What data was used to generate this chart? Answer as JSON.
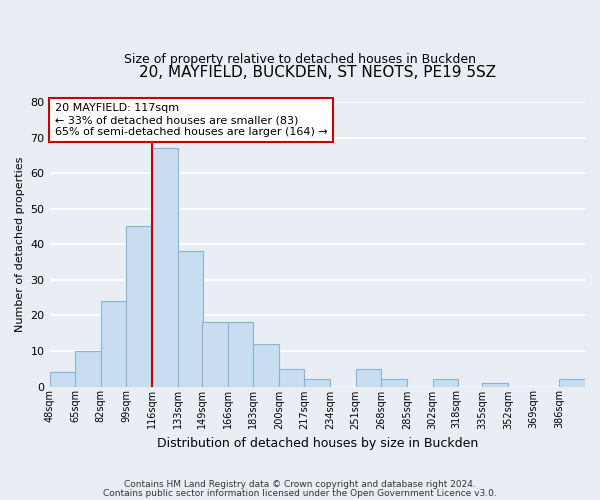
{
  "title": "20, MAYFIELD, BUCKDEN, ST NEOTS, PE19 5SZ",
  "subtitle": "Size of property relative to detached houses in Buckden",
  "xlabel": "Distribution of detached houses by size in Buckden",
  "ylabel": "Number of detached properties",
  "bar_color": "#c8ddef",
  "bar_edge_color": "#8ab4d4",
  "background_color": "#e8eef4",
  "plot_bg_color": "#e8eef4",
  "grid_color": "#ffffff",
  "bin_labels": [
    "48sqm",
    "65sqm",
    "82sqm",
    "99sqm",
    "116sqm",
    "133sqm",
    "149sqm",
    "166sqm",
    "183sqm",
    "200sqm",
    "217sqm",
    "234sqm",
    "251sqm",
    "268sqm",
    "285sqm",
    "302sqm",
    "318sqm",
    "335sqm",
    "352sqm",
    "369sqm",
    "386sqm"
  ],
  "bar_heights": [
    4,
    10,
    24,
    45,
    67,
    38,
    18,
    18,
    12,
    5,
    2,
    0,
    5,
    2,
    0,
    2,
    0,
    1,
    0,
    0,
    2
  ],
  "ylim": [
    0,
    80
  ],
  "yticks": [
    0,
    10,
    20,
    30,
    40,
    50,
    60,
    70,
    80
  ],
  "red_line_color": "#cc0000",
  "annotation_title": "20 MAYFIELD: 117sqm",
  "annotation_line1": "← 33% of detached houses are smaller (83)",
  "annotation_line2": "65% of semi-detached houses are larger (164) →",
  "annotation_box_color": "#ffffff",
  "annotation_box_edge": "#cc0000",
  "footer_line1": "Contains HM Land Registry data © Crown copyright and database right 2024.",
  "footer_line2": "Contains public sector information licensed under the Open Government Licence v3.0.",
  "bin_starts": [
    48,
    65,
    82,
    99,
    116,
    133,
    149,
    166,
    183,
    200,
    217,
    234,
    251,
    268,
    285,
    302,
    318,
    335,
    352,
    369,
    386
  ],
  "bin_width": 17,
  "red_line_x": 116
}
